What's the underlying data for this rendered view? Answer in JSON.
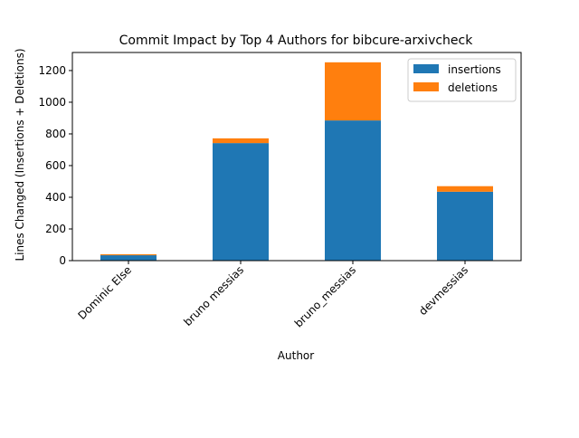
{
  "chart_data": {
    "type": "bar",
    "stacked": true,
    "title": "Commit Impact by Top 4 Authors for bibcure-arxivcheck",
    "xlabel": "Author",
    "ylabel": "Lines Changed (Insertions + Deletions)",
    "categories": [
      "Dominic Else",
      "bruno messias",
      "bruno_messias",
      "devmessias"
    ],
    "series": [
      {
        "name": "insertions",
        "color": "#1f77b4",
        "values": [
          34,
          742,
          885,
          435
        ]
      },
      {
        "name": "deletions",
        "color": "#ff7f0e",
        "values": [
          6,
          30,
          367,
          35
        ]
      }
    ],
    "ylim": [
      0,
      1314
    ],
    "yticks": [
      0,
      200,
      400,
      600,
      800,
      1000,
      1200
    ],
    "grid": false,
    "legend_position": "top-right"
  }
}
